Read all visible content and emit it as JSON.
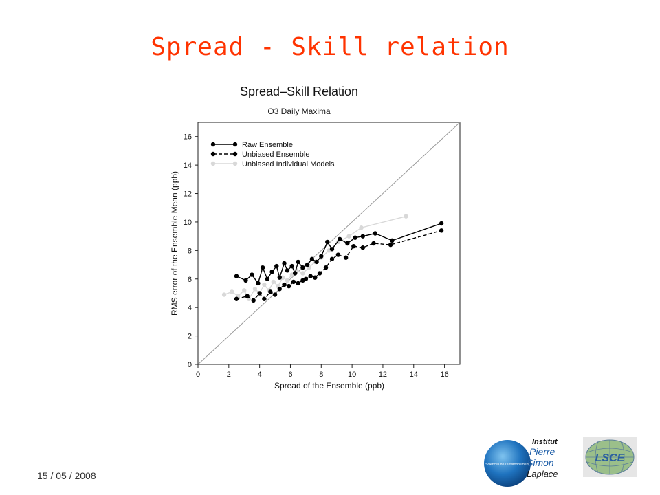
{
  "slide": {
    "title": "Spread - Skill relation",
    "date": "15 / 05 / 2008"
  },
  "logos": {
    "ipsl_badge": "Sciences de l'environnement",
    "ipsl_name": [
      "Institut",
      "Pierre",
      "Simon",
      "Laplace"
    ],
    "lsce": "LSCE"
  },
  "colors": {
    "title": "#ff3300",
    "raw": "#000000",
    "unbiased": "#000000",
    "individual": "#d8d8d8",
    "diagonal": "#999999"
  },
  "chart_data": {
    "type": "line",
    "title": "Spread–Skill Relation",
    "subtitle": "O3 Daily Maxima",
    "xlabel": "Spread of the Ensemble (ppb)",
    "ylabel": "RMS error of the Ensemble Mean (ppb)",
    "xlim": [
      0,
      17
    ],
    "ylim": [
      0,
      17
    ],
    "xticks": [
      0,
      2,
      4,
      6,
      8,
      10,
      12,
      14,
      16
    ],
    "yticks": [
      0,
      2,
      4,
      6,
      8,
      10,
      12,
      14,
      16
    ],
    "diagonal": true,
    "legend_position": "top-left",
    "series": [
      {
        "name": "Raw Ensemble",
        "style": "solid",
        "x": [
          2.5,
          3.1,
          3.5,
          3.9,
          4.2,
          4.5,
          4.8,
          5.1,
          5.3,
          5.6,
          5.8,
          6.1,
          6.3,
          6.5,
          6.8,
          7.1,
          7.4,
          7.7,
          8.0,
          8.4,
          8.7,
          9.2,
          9.7,
          10.2,
          10.7,
          11.5,
          12.6,
          15.8
        ],
        "y": [
          6.2,
          5.9,
          6.3,
          5.7,
          6.8,
          6.0,
          6.5,
          6.9,
          6.1,
          7.1,
          6.6,
          6.9,
          6.4,
          7.2,
          6.8,
          7.0,
          7.4,
          7.2,
          7.6,
          8.6,
          8.1,
          8.8,
          8.5,
          8.9,
          9.0,
          9.2,
          8.7,
          9.9
        ]
      },
      {
        "name": "Unbiased Ensemble",
        "style": "dashed",
        "x": [
          2.5,
          3.2,
          3.6,
          4.0,
          4.3,
          4.7,
          5.0,
          5.3,
          5.6,
          5.9,
          6.2,
          6.5,
          6.8,
          7.0,
          7.3,
          7.6,
          7.9,
          8.3,
          8.7,
          9.1,
          9.6,
          10.1,
          10.7,
          11.4,
          12.5,
          15.8
        ],
        "y": [
          4.6,
          4.8,
          4.5,
          5.0,
          4.6,
          5.1,
          4.9,
          5.3,
          5.6,
          5.5,
          5.8,
          5.7,
          5.9,
          6.0,
          6.2,
          6.1,
          6.4,
          6.8,
          7.4,
          7.7,
          7.5,
          8.3,
          8.2,
          8.5,
          8.4,
          9.4
        ]
      },
      {
        "name": "Unbiased Individual Models",
        "style": "solid",
        "x": [
          1.7,
          2.2,
          2.6,
          3.0,
          3.3,
          3.7,
          4.0,
          4.3,
          4.6,
          4.9,
          5.2,
          5.5,
          5.8,
          6.1,
          6.4,
          6.8,
          7.2,
          7.6,
          8.0,
          8.5,
          9.1,
          9.8,
          10.6,
          13.5
        ],
        "y": [
          4.9,
          5.1,
          4.8,
          5.2,
          4.6,
          5.3,
          5.0,
          5.6,
          5.2,
          5.8,
          5.5,
          6.1,
          5.9,
          6.3,
          6.6,
          6.4,
          6.8,
          7.2,
          7.5,
          8.0,
          8.6,
          9.0,
          9.6,
          10.4
        ]
      }
    ]
  }
}
